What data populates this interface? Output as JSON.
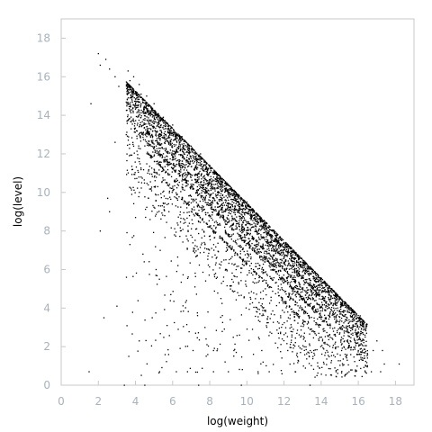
{
  "chart_data": {
    "type": "scatter",
    "xlabel": "log(weight)",
    "ylabel": "log(level)",
    "xlim": [
      0,
      19
    ],
    "ylim": [
      0,
      19
    ],
    "x_ticks": [
      0,
      2,
      4,
      6,
      8,
      10,
      12,
      14,
      16,
      18
    ],
    "y_ticks": [
      0,
      2,
      4,
      6,
      8,
      10,
      12,
      14,
      16,
      18
    ],
    "grid": false,
    "legend": "none",
    "marker_color": "#000000",
    "frame_color": "#c8c8c8",
    "tick_color": "#a8b2bc",
    "upper_boundary": {
      "x": [
        2.0,
        15.5
      ],
      "y": [
        17.2,
        4.1
      ]
    },
    "dense_band_x_range": [
      5.5,
      14.5
    ],
    "points": [
      [
        2.0,
        17.2
      ],
      [
        2.1,
        16.6
      ],
      [
        2.4,
        16.9
      ],
      [
        2.6,
        16.4
      ],
      [
        2.9,
        16.0
      ],
      [
        3.1,
        15.5
      ],
      [
        3.6,
        16.3
      ],
      [
        3.7,
        15.8
      ],
      [
        3.9,
        16.0
      ],
      [
        4.2,
        15.6
      ],
      [
        4.3,
        15.1
      ],
      [
        4.6,
        15.0
      ],
      [
        5.0,
        14.6
      ],
      [
        5.5,
        13.9
      ],
      [
        6.0,
        13.5
      ],
      [
        6.5,
        12.9
      ],
      [
        7.0,
        12.4
      ],
      [
        7.5,
        12.0
      ],
      [
        8.0,
        11.4
      ],
      [
        8.5,
        10.9
      ],
      [
        9.0,
        10.4
      ],
      [
        9.5,
        9.9
      ],
      [
        10.0,
        9.5
      ],
      [
        10.5,
        8.9
      ],
      [
        11.0,
        8.3
      ],
      [
        11.5,
        7.9
      ],
      [
        12.0,
        7.4
      ],
      [
        12.5,
        6.9
      ],
      [
        13.0,
        6.5
      ],
      [
        13.5,
        5.9
      ],
      [
        14.0,
        5.4
      ],
      [
        14.5,
        4.9
      ],
      [
        15.0,
        4.5
      ],
      [
        15.5,
        4.1
      ],
      [
        1.6,
        14.6
      ],
      [
        2.1,
        8.0
      ],
      [
        2.6,
        9.0
      ],
      [
        2.5,
        9.7
      ],
      [
        2.9,
        12.6
      ],
      [
        3.0,
        4.1
      ],
      [
        2.3,
        3.5
      ],
      [
        1.5,
        0.7
      ],
      [
        3.4,
        0.0
      ],
      [
        4.5,
        0.0
      ],
      [
        5.3,
        0.7
      ],
      [
        6.2,
        0.7
      ],
      [
        6.8,
        0.7
      ],
      [
        7.4,
        0.0
      ],
      [
        8.2,
        0.7
      ],
      [
        9.0,
        0.7
      ],
      [
        9.7,
        0.0
      ],
      [
        10.6,
        0.7
      ],
      [
        11.2,
        0.7
      ],
      [
        12.6,
        0.7
      ],
      [
        13.4,
        0.0
      ],
      [
        14.8,
        0.7
      ],
      [
        15.5,
        0.7
      ],
      [
        16.7,
        0.7
      ],
      [
        17.2,
        0.7
      ],
      [
        17.4,
        1.1
      ],
      [
        17.3,
        1.8
      ],
      [
        16.8,
        1.8
      ],
      [
        16.0,
        1.8
      ],
      [
        15.1,
        1.8
      ],
      [
        14.3,
        1.8
      ],
      [
        13.6,
        1.8
      ],
      [
        12.2,
        1.8
      ],
      [
        10.8,
        1.8
      ],
      [
        9.3,
        1.8
      ],
      [
        8.2,
        1.8
      ],
      [
        7.1,
        1.8
      ],
      [
        4.2,
        2.3
      ],
      [
        4.9,
        3.5
      ],
      [
        5.7,
        3.1
      ],
      [
        6.3,
        2.9
      ],
      [
        7.8,
        2.4
      ],
      [
        9.6,
        2.6
      ],
      [
        11.9,
        2.4
      ],
      [
        13.1,
        2.7
      ],
      [
        14.1,
        2.9
      ],
      [
        15.3,
        3.4
      ],
      [
        16.1,
        3.6
      ],
      [
        16.2,
        2.1
      ],
      [
        16.5,
        1.6
      ],
      [
        17.0,
        2.3
      ],
      [
        16.4,
        2.9
      ],
      [
        15.7,
        2.6
      ],
      [
        18.2,
        1.1
      ],
      [
        3.5,
        13.0
      ],
      [
        3.9,
        12.4
      ],
      [
        4.2,
        11.6
      ],
      [
        4.6,
        12.9
      ],
      [
        4.3,
        10.8
      ],
      [
        3.8,
        9.9
      ],
      [
        4.0,
        8.7
      ],
      [
        4.7,
        9.7
      ],
      [
        5.0,
        11.2
      ],
      [
        5.2,
        10.3
      ],
      [
        5.8,
        9.0
      ],
      [
        6.1,
        7.8
      ],
      [
        6.5,
        10.6
      ],
      [
        6.9,
        8.4
      ],
      [
        7.3,
        6.7
      ],
      [
        7.6,
        9.3
      ],
      [
        8.1,
        7.1
      ],
      [
        8.4,
        5.6
      ],
      [
        8.8,
        8.2
      ],
      [
        9.2,
        6.3
      ],
      [
        9.5,
        4.8
      ],
      [
        10.1,
        7.4
      ],
      [
        10.4,
        5.3
      ],
      [
        10.9,
        6.6
      ],
      [
        11.3,
        4.4
      ],
      [
        11.7,
        5.9
      ],
      [
        12.2,
        3.8
      ],
      [
        12.8,
        5.0
      ],
      [
        13.3,
        3.3
      ],
      [
        13.8,
        4.2
      ],
      [
        6.7,
        4.3
      ],
      [
        7.9,
        3.8
      ],
      [
        9.1,
        3.4
      ],
      [
        10.3,
        2.9
      ],
      [
        5.1,
        5.7
      ],
      [
        4.4,
        6.8
      ],
      [
        3.7,
        7.3
      ],
      [
        5.9,
        4.7
      ],
      [
        7.2,
        5.1
      ],
      [
        8.6,
        4.5
      ],
      [
        10.7,
        3.7
      ],
      [
        12.5,
        2.9
      ]
    ]
  }
}
